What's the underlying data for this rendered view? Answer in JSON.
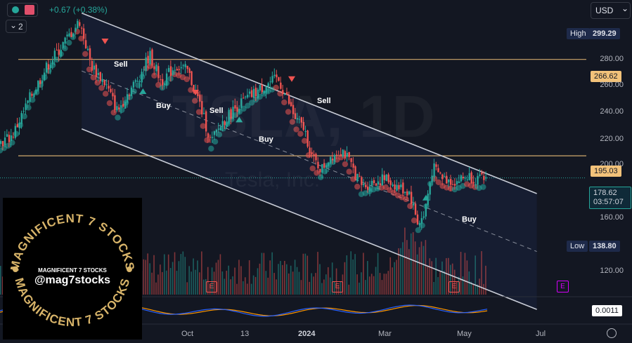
{
  "header": {
    "change_text": "+0.67 (+0.38%)",
    "interval_badge": "2",
    "currency": "USD",
    "currency_caret": "⌄"
  },
  "watermark": {
    "symbol": "TSLA, 1D",
    "company": "Tesla, Inc."
  },
  "price_axis": {
    "ticks": [
      "280.00",
      "260.00",
      "240.00",
      "220.00",
      "200.00",
      "160.00",
      "120.00"
    ],
    "high_label": "High",
    "high_value": "299.29",
    "low_label": "Low",
    "low_value": "138.80",
    "level_upper": "266.62",
    "level_lower": "195.03",
    "last_price": "178.62",
    "countdown": "03:57:07"
  },
  "time_axis": {
    "ticks": [
      "Oct",
      "13",
      "2024",
      "Mar",
      "May",
      "Jul"
    ]
  },
  "signals": [
    {
      "label": "Sell"
    },
    {
      "label": "Buy"
    },
    {
      "label": "Sell"
    },
    {
      "label": "Buy"
    },
    {
      "label": "Sell"
    },
    {
      "label": "Buy"
    }
  ],
  "earnings_marker": "E",
  "oscillator": {
    "value": "0.0011"
  },
  "logo": {
    "ring_text": "MAGNIFICENT 7 STOCKS",
    "small_text": "MAGNIFICENT 7 STOCKS",
    "handle": "@mag7stocks"
  },
  "colors": {
    "background": "#131722",
    "up": "#26a69a",
    "down": "#ef5350",
    "level": "#f2c27a",
    "channel": "#c8ccd6",
    "logo_gold": "#d9b56a",
    "earnings": "#ef5350",
    "future_earnings": "#d500f9"
  },
  "chart_data": {
    "type": "candlestick",
    "title": "",
    "symbol": "TSLA",
    "interval": "1D",
    "currency": "USD",
    "ylim": [
      100,
      310
    ],
    "x_ticks": [
      "Oct",
      "13",
      "2024",
      "Mar",
      "May",
      "Jul"
    ],
    "y_ticks": [
      120,
      160,
      200,
      220,
      240,
      260,
      280
    ],
    "high": 299.29,
    "low": 138.8,
    "last": 178.62,
    "horizontal_levels": [
      266.62,
      195.03
    ],
    "close_path": [
      {
        "x": 0,
        "y": 205
      },
      {
        "x": 0.02,
        "y": 210
      },
      {
        "x": 0.05,
        "y": 238
      },
      {
        "x": 0.08,
        "y": 262
      },
      {
        "x": 0.11,
        "y": 280
      },
      {
        "x": 0.135,
        "y": 295
      },
      {
        "x": 0.155,
        "y": 262
      },
      {
        "x": 0.18,
        "y": 248
      },
      {
        "x": 0.2,
        "y": 228
      },
      {
        "x": 0.215,
        "y": 240
      },
      {
        "x": 0.235,
        "y": 252
      },
      {
        "x": 0.255,
        "y": 270
      },
      {
        "x": 0.275,
        "y": 250
      },
      {
        "x": 0.3,
        "y": 262
      },
      {
        "x": 0.32,
        "y": 258
      },
      {
        "x": 0.34,
        "y": 235
      },
      {
        "x": 0.36,
        "y": 205
      },
      {
        "x": 0.38,
        "y": 220
      },
      {
        "x": 0.405,
        "y": 232
      },
      {
        "x": 0.43,
        "y": 240
      },
      {
        "x": 0.455,
        "y": 248
      },
      {
        "x": 0.475,
        "y": 252
      },
      {
        "x": 0.49,
        "y": 238
      },
      {
        "x": 0.505,
        "y": 222
      },
      {
        "x": 0.52,
        "y": 215
      },
      {
        "x": 0.535,
        "y": 192
      },
      {
        "x": 0.55,
        "y": 185
      },
      {
        "x": 0.565,
        "y": 195
      },
      {
        "x": 0.585,
        "y": 200
      },
      {
        "x": 0.6,
        "y": 188
      },
      {
        "x": 0.62,
        "y": 172
      },
      {
        "x": 0.64,
        "y": 176
      },
      {
        "x": 0.66,
        "y": 178
      },
      {
        "x": 0.68,
        "y": 172
      },
      {
        "x": 0.7,
        "y": 168
      },
      {
        "x": 0.715,
        "y": 145
      },
      {
        "x": 0.725,
        "y": 150
      },
      {
        "x": 0.74,
        "y": 186
      },
      {
        "x": 0.76,
        "y": 178
      },
      {
        "x": 0.78,
        "y": 176
      },
      {
        "x": 0.8,
        "y": 180
      },
      {
        "x": 0.82,
        "y": 177
      },
      {
        "x": 0.835,
        "y": 178.62
      }
    ],
    "channel": {
      "upper": [
        {
          "x": 0.14,
          "y": 301
        },
        {
          "x": 0.92,
          "y": 167
        }
      ],
      "middle": [
        {
          "x": 0.14,
          "y": 258
        },
        {
          "x": 0.92,
          "y": 124
        }
      ],
      "lower": [
        {
          "x": 0.14,
          "y": 215
        },
        {
          "x": 0.92,
          "y": 81
        }
      ]
    },
    "signals": [
      {
        "type": "sell",
        "x": 0.18,
        "price": 280
      },
      {
        "type": "buy",
        "x": 0.245,
        "price": 243
      },
      {
        "type": "sell",
        "x": 0.335,
        "price": 242
      },
      {
        "type": "buy",
        "x": 0.41,
        "price": 222
      },
      {
        "type": "sell",
        "x": 0.5,
        "price": 252
      },
      {
        "type": "buy",
        "x": 0.73,
        "price": 164
      }
    ],
    "earnings_x": [
      0.335,
      0.535,
      0.72
    ],
    "future_earnings_x": [
      0.895
    ],
    "oscillator_last": 0.0011
  }
}
